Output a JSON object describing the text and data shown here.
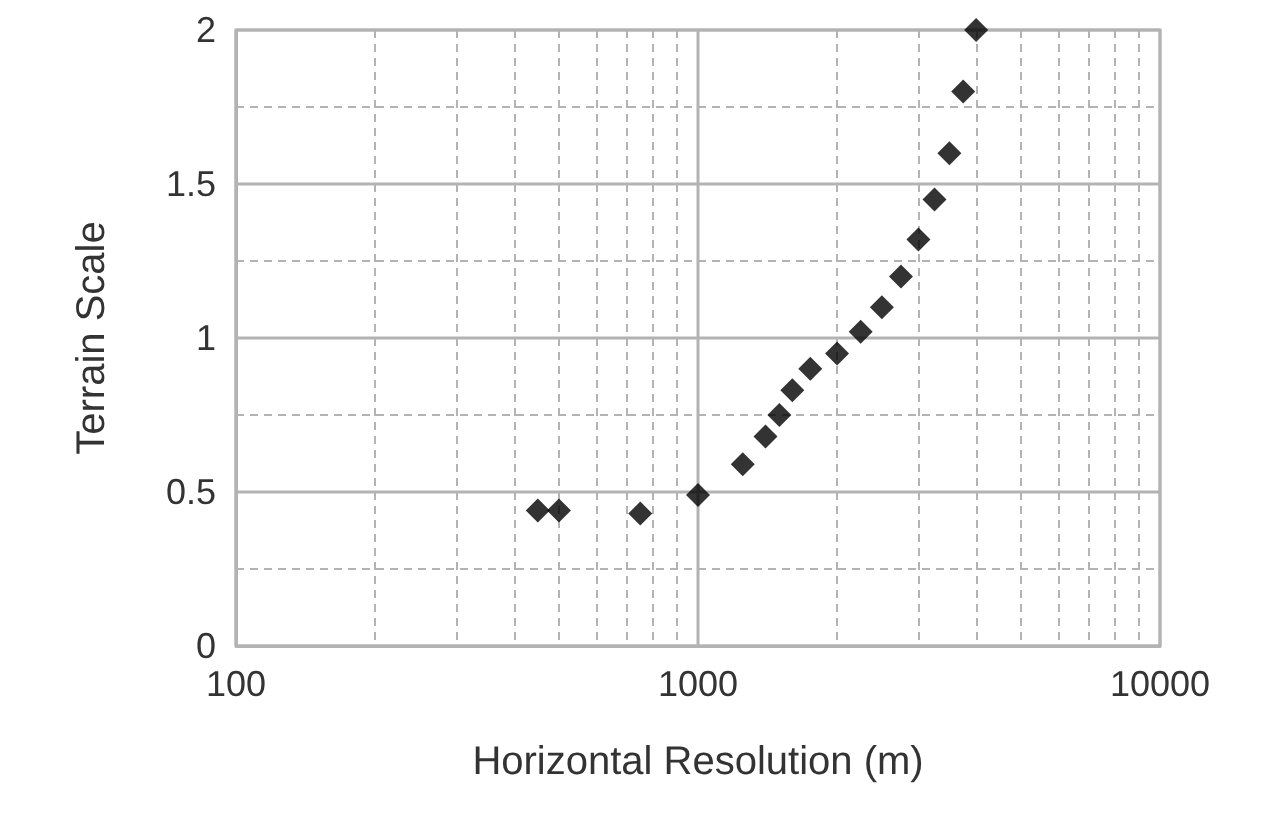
{
  "chart_data": {
    "type": "scatter",
    "xlabel": "Horizontal Resolution (m)",
    "ylabel": "Terrain Scale",
    "x": [
      450,
      500,
      750,
      1000,
      1250,
      1400,
      1500,
      1600,
      1750,
      2000,
      2250,
      2500,
      2750,
      3000,
      3250,
      3500,
      3750,
      4000
    ],
    "values": [
      0.44,
      0.44,
      0.43,
      0.49,
      0.59,
      0.68,
      0.75,
      0.83,
      0.9,
      0.95,
      1.02,
      1.1,
      1.2,
      1.32,
      1.45,
      1.6,
      1.8,
      2.0
    ],
    "color": "#000000",
    "marker": "diamond",
    "log": "x",
    "grid": true,
    "xlim": [
      100,
      10000
    ],
    "xticks": [
      100,
      {
        "value": 200,
        "label": null
      },
      {
        "value": 300,
        "label": null
      },
      {
        "value": 400,
        "label": null
      },
      {
        "value": 500,
        "label": null
      },
      {
        "value": 600,
        "label": null
      },
      {
        "value": 700,
        "label": null
      },
      {
        "value": 800,
        "label": null
      },
      {
        "value": 900,
        "label": null
      },
      1000,
      {
        "value": 2000,
        "label": null
      },
      {
        "value": 3000,
        "label": null
      },
      {
        "value": 4000,
        "label": null
      },
      {
        "value": 5000,
        "label": null
      },
      {
        "value": 6000,
        "label": null
      },
      {
        "value": 7000,
        "label": null
      },
      {
        "value": 8000,
        "label": null
      },
      {
        "value": 9000,
        "label": null
      },
      10000
    ],
    "ylim": [
      0,
      2
    ],
    "yticks": [
      0,
      {
        "value": 0.25,
        "label": null
      },
      0.5,
      {
        "value": 0.75,
        "label": null
      },
      1,
      {
        "value": 1.25,
        "label": null
      },
      1.5,
      {
        "value": 1.75,
        "label": null
      },
      2
    ]
  }
}
